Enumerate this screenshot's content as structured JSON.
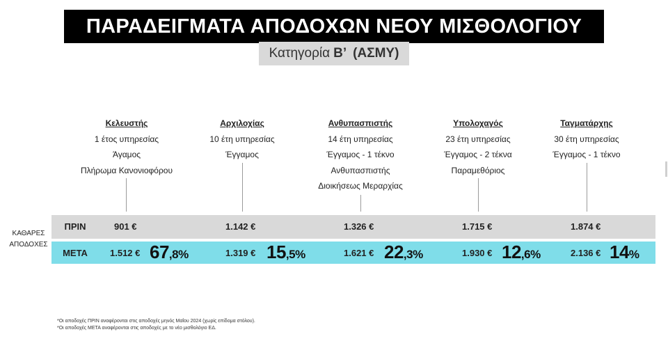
{
  "header": {
    "title": "ΠΑΡΑΔΕΙΓΜΑΤΑ ΑΠΟΔΟΧΩΝ ΝΕΟΥ ΜΙΣΘΟΛΟΓΙΟΥ",
    "subtitle_prefix": "Κατηγορία",
    "subtitle_letter": "Β’",
    "subtitle_code": "(ΑΣΜΥ)"
  },
  "ranks": [
    {
      "name": "Κελευστής",
      "lines": [
        "1 έτος υπηρεσίας",
        "Άγαμος",
        "Πλήρωμα Κανονιοφόρου"
      ],
      "before": "901 €",
      "after": "1.512 €",
      "pct_main": "67",
      "pct_small": ",8%"
    },
    {
      "name": "Αρχιλοχίας",
      "lines": [
        "10 έτη υπηρεσίας",
        "Έγγαμος"
      ],
      "before": "1.142 €",
      "after": "1.319 €",
      "pct_main": "15",
      "pct_small": ",5%"
    },
    {
      "name": "Ανθυπασπιστής",
      "lines": [
        "14 έτη υπηρεσίας",
        "Έγγαμος - 1 τέκνο",
        "Ανθυπασπιστής",
        "Διοικήσεως Μεραρχίας"
      ],
      "before": "1.326 €",
      "after": "1.621 €",
      "pct_main": "22",
      "pct_small": ",3%"
    },
    {
      "name": "Υπολοχαγός",
      "lines": [
        "23 έτη υπηρεσίας",
        "Έγγαμος - 2 τέκνα",
        "Παραμεθόριος"
      ],
      "before": "1.715 €",
      "after": "1.930 €",
      "pct_main": "12",
      "pct_small": ",6%"
    },
    {
      "name": "Ταγματάρχης",
      "lines": [
        "30 έτη υπηρεσίας",
        "Έγγαμος - 1 τέκνο"
      ],
      "before": "1.874 €",
      "after": "2.136 €",
      "pct_main": "14",
      "pct_small": "%"
    }
  ],
  "table": {
    "before_label": "ΠΡΙΝ",
    "after_label": "ΜΕΤΑ",
    "side_label_line1": "ΚΑΘΑΡΕΣ",
    "side_label_line2": "ΑΠΟΔΟΧΕΣ",
    "colors": {
      "before_row": "#d9d9d9",
      "after_row": "#7fdde9"
    }
  },
  "footnotes": [
    "*Οι αποδοχές ΠΡΙΝ αναφέρονται στις αποδοχές μηνός Μαΐου 2024 (χωρίς επίδομα στόλου).",
    "*Οι αποδοχές ΜΕΤΑ αναφέρονται στις αποδοχές με το νέο μισθολόγιο ΕΔ."
  ]
}
